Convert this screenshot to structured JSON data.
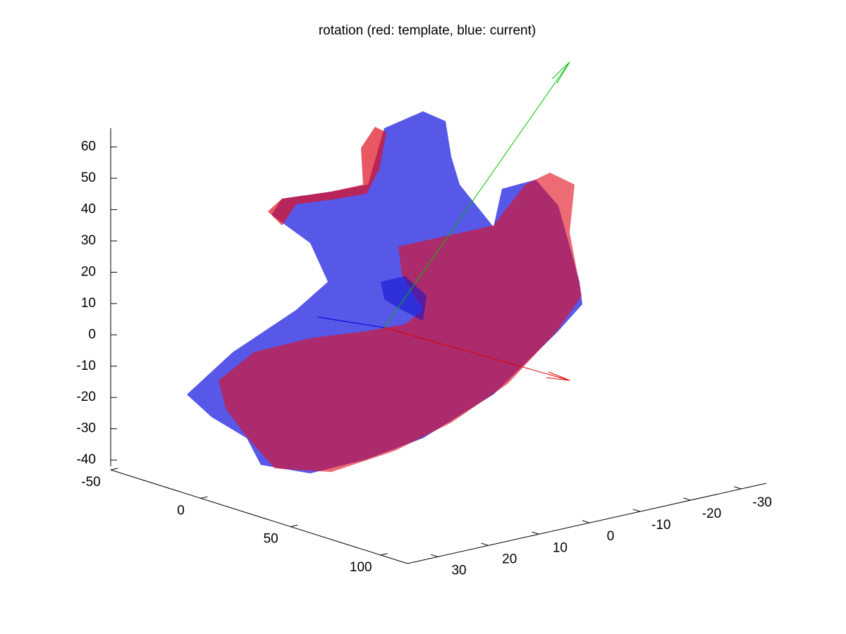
{
  "chart_data": {
    "type": "surface3d",
    "title": "rotation (red: template, blue: current)",
    "xlim": [
      -50,
      115
    ],
    "xticks": [
      -50,
      0,
      50,
      100
    ],
    "ylim": [
      36,
      -35
    ],
    "yticks": [
      30,
      20,
      10,
      0,
      -10,
      -20,
      -30
    ],
    "zlim": [
      -42,
      66
    ],
    "zticks": [
      -40,
      -30,
      -20,
      -10,
      0,
      10,
      20,
      30,
      40,
      50,
      60
    ]
  }
}
